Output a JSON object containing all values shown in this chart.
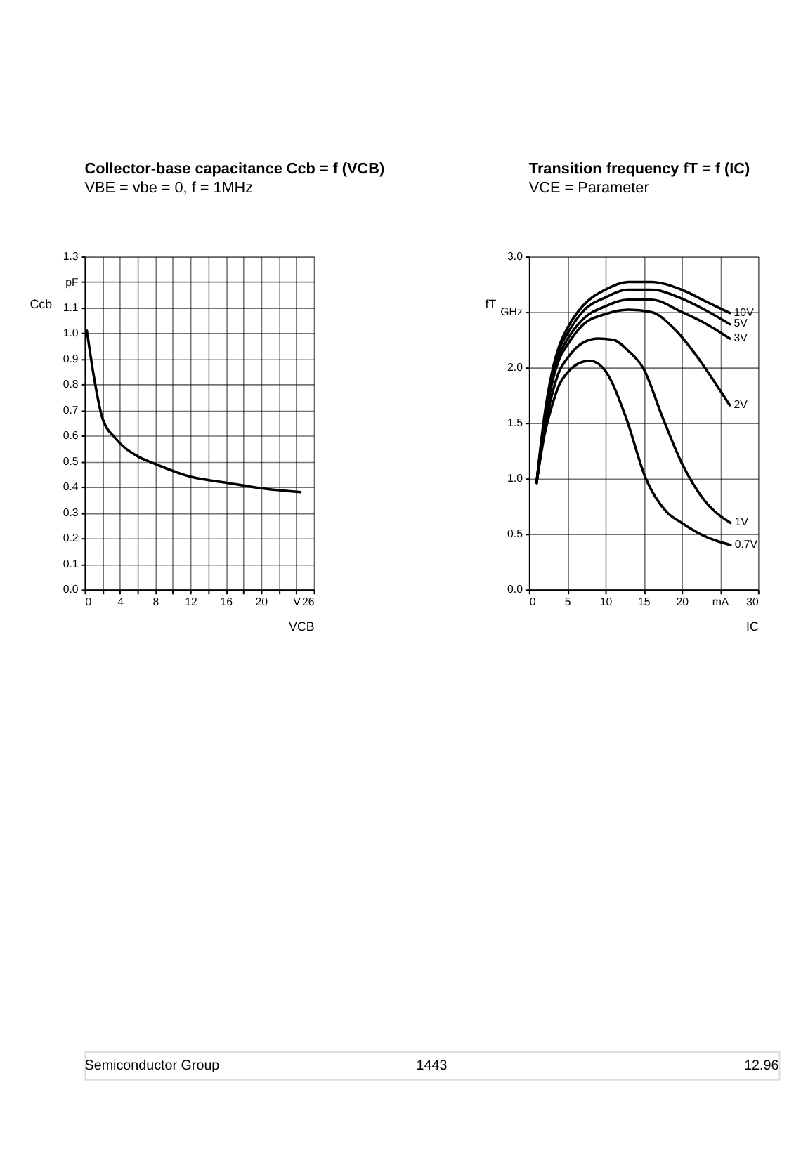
{
  "chart_data": [
    {
      "type": "line",
      "title": "Collector-base capacitance Ccb = f (VCB)",
      "subtitle": "VBE = vbe = 0, f = 1MHz",
      "xlabel": "VCB",
      "ylabel": "Ccb",
      "grid": true,
      "legend": false,
      "marker": "none",
      "line_style": "solid",
      "x": [
        0.25,
        1,
        2,
        3.5,
        6,
        8,
        12,
        16,
        20,
        24.5
      ],
      "series": [
        {
          "color": "#000000",
          "values": [
            1.01,
            0.84,
            0.67,
            0.59,
            0.52,
            0.49,
            0.44,
            0.417,
            0.395,
            0.38
          ]
        }
      ],
      "xlim": [
        0,
        26
      ],
      "ylim": [
        0,
        1.3
      ],
      "xticks": [
        0,
        {
          "value": 2,
          "label": null
        },
        4,
        {
          "value": 6,
          "label": null
        },
        8,
        {
          "value": 10,
          "label": null
        },
        12,
        {
          "value": 14,
          "label": null
        },
        16,
        {
          "value": 18,
          "label": null
        },
        20,
        {
          "value": 22,
          "label": null
        },
        {
          "value": 24,
          "label": "V"
        },
        26
      ],
      "yticks": [
        {
          "value": 0,
          "label": "0.0"
        },
        0.1,
        0.2,
        0.3,
        0.4,
        0.5,
        0.6,
        0.7,
        0.8,
        0.9,
        {
          "value": 1,
          "label": "1.0"
        },
        1.1,
        {
          "value": 1.2,
          "label": "pF"
        },
        1.3
      ],
      "annotations": [
        "Semiconductor Group",
        "1443",
        "12.96"
      ]
    },
    {
      "type": "line",
      "title": "Transition frequency fT = f (IC)",
      "subtitle": "VCE = Parameter",
      "xlabel": "IC",
      "ylabel": "fT",
      "grid": true,
      "legend": false,
      "marker": "none",
      "line_style": "solid",
      "series": [
        {
          "name": "10V",
          "color": "#000000",
          "x": [
            1,
            2,
            3,
            4,
            5,
            7,
            10,
            13,
            16,
            20,
            23,
            26.3
          ],
          "values": [
            0.96,
            1.55,
            1.95,
            2.2,
            2.35,
            2.55,
            2.7,
            2.77,
            2.77,
            2.7,
            2.6,
            2.49
          ]
        },
        {
          "name": "5V",
          "color": "#000000",
          "x": [
            1,
            2,
            3,
            4,
            5,
            7,
            10,
            13,
            16,
            20,
            23,
            26.3
          ],
          "values": [
            0.96,
            1.52,
            1.92,
            2.17,
            2.3,
            2.5,
            2.63,
            2.7,
            2.7,
            2.62,
            2.52,
            2.39
          ]
        },
        {
          "name": "3V",
          "color": "#000000",
          "x": [
            1,
            2,
            3,
            4,
            5,
            7,
            10,
            13,
            16,
            20,
            23,
            26.3
          ],
          "values": [
            0.96,
            1.5,
            1.88,
            2.12,
            2.25,
            2.43,
            2.55,
            2.61,
            2.61,
            2.5,
            2.4,
            2.26
          ]
        },
        {
          "name": "2V",
          "color": "#000000",
          "x": [
            1,
            2,
            3,
            4,
            5,
            7,
            10,
            13,
            16,
            19,
            22,
            24,
            26.3
          ],
          "values": [
            0.96,
            1.47,
            1.85,
            2.08,
            2.2,
            2.38,
            2.48,
            2.52,
            2.5,
            2.35,
            2.1,
            1.9,
            1.66
          ]
        },
        {
          "name": "1V",
          "color": "#000000",
          "x": [
            1,
            2,
            3,
            4,
            5,
            7,
            9,
            11,
            13,
            15,
            17.5,
            20,
            23,
            26.4
          ],
          "values": [
            0.96,
            1.42,
            1.75,
            1.97,
            2.08,
            2.22,
            2.26,
            2.25,
            2.15,
            1.99,
            1.55,
            1.14,
            0.8,
            0.6
          ]
        },
        {
          "name": "0.7V",
          "color": "#000000",
          "x": [
            1,
            2,
            3,
            4,
            5,
            7,
            8,
            10,
            12.7,
            15.3,
            18,
            20,
            23,
            26.4
          ],
          "values": [
            0.96,
            1.38,
            1.65,
            1.85,
            1.95,
            2.05,
            2.06,
            1.97,
            1.55,
            1.0,
            0.7,
            0.6,
            0.48,
            0.4
          ]
        }
      ],
      "xlim": [
        0,
        30
      ],
      "ylim": [
        0,
        3
      ],
      "xticks": [
        0,
        5,
        10,
        15,
        20,
        {
          "value": 25,
          "label": "mA"
        },
        30
      ],
      "yticks": [
        {
          "value": 0,
          "label": "0.0"
        },
        0.5,
        {
          "value": 1,
          "label": "1.0"
        },
        1.5,
        {
          "value": 2,
          "label": "2.0"
        },
        {
          "value": 2.5,
          "label": "GHz"
        },
        {
          "value": 3,
          "label": "3.0"
        }
      ]
    }
  ]
}
